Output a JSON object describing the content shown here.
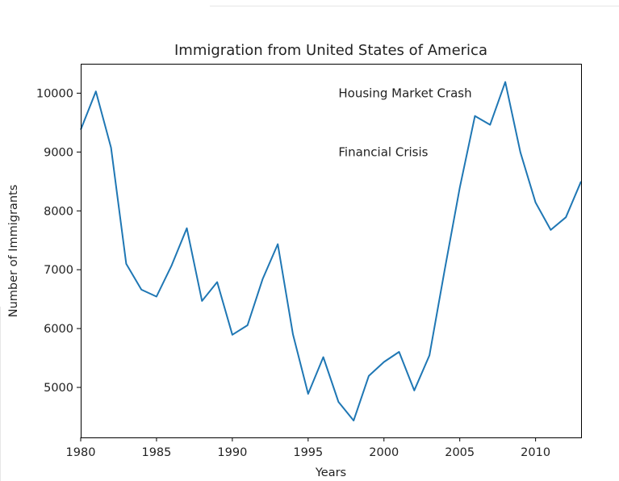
{
  "chart_data": {
    "type": "line",
    "title": "Immigration from United States of America",
    "xlabel": "Years",
    "ylabel": "Number of Immigrants",
    "xlim": [
      1980,
      2013
    ],
    "ylim": [
      4150,
      10500
    ],
    "xticks": [
      1980,
      1985,
      1990,
      1995,
      2000,
      2005,
      2010
    ],
    "yticks": [
      5000,
      6000,
      7000,
      8000,
      9000,
      10000
    ],
    "grid": false,
    "line_color": "#1f77b4",
    "x": [
      1980,
      1981,
      1982,
      1983,
      1984,
      1985,
      1986,
      1987,
      1988,
      1989,
      1990,
      1991,
      1992,
      1993,
      1994,
      1995,
      1996,
      1997,
      1998,
      1999,
      2000,
      2001,
      2002,
      2003,
      2004,
      2005,
      2006,
      2007,
      2008,
      2009,
      2010,
      2011,
      2012,
      2013
    ],
    "series": [
      {
        "values": [
          9378,
          10030,
          9074,
          7100,
          6661,
          6543,
          7074,
          7705,
          6469,
          6790,
          5895,
          6057,
          6843,
          7435,
          5901,
          4891,
          5515,
          4753,
          4437,
          5196,
          5433,
          5604,
          4948,
          5543,
          6990,
          8394,
          9613,
          9463,
          10190,
          8995,
          8142,
          7676,
          7891,
          8501
        ]
      }
    ],
    "annotations": [
      {
        "text": "Housing Market Crash",
        "x": 1997,
        "y": 10000
      },
      {
        "text": "Financial Crisis",
        "x": 1997,
        "y": 9000
      }
    ]
  }
}
